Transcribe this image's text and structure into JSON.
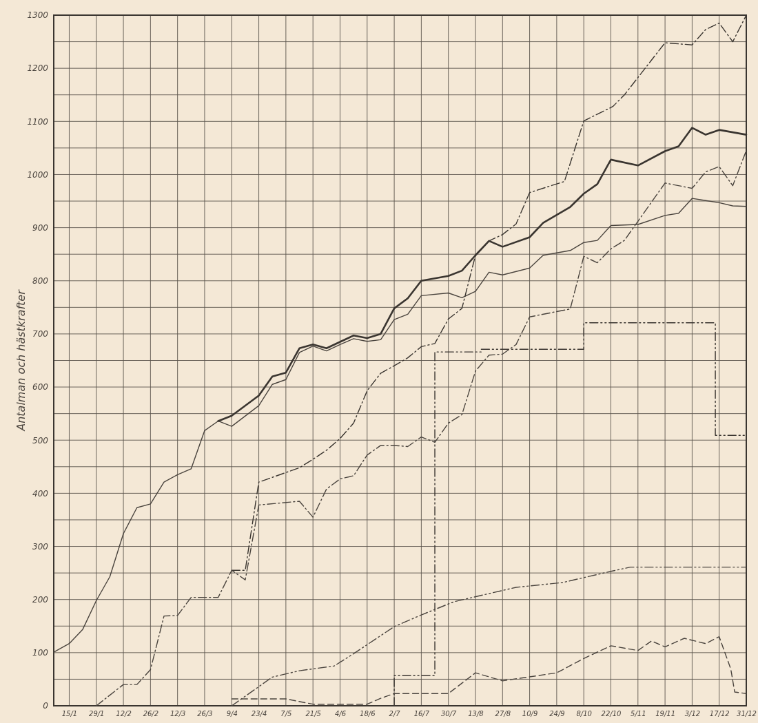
{
  "chart_data": {
    "type": "line",
    "ylabel": "Antalman och hästkrafter",
    "grid": true,
    "xlim": [
      "--01-07",
      "--12-31"
    ],
    "ylim": [
      0,
      1300
    ],
    "xticks": [
      {
        "value": "--01-15",
        "label": "15/1"
      },
      {
        "value": "--01-29",
        "label": "29/1"
      },
      {
        "value": "--02-12",
        "label": "12/2"
      },
      {
        "value": "--02-26",
        "label": "26/2"
      },
      {
        "value": "--03-12",
        "label": "12/3"
      },
      {
        "value": "--03-26",
        "label": "26/3"
      },
      {
        "value": "--04-09",
        "label": "9/4"
      },
      {
        "value": "--04-23",
        "label": "23/4"
      },
      {
        "value": "--05-07",
        "label": "7/5"
      },
      {
        "value": "--05-21",
        "label": "21/5"
      },
      {
        "value": "--06-04",
        "label": "4/6"
      },
      {
        "value": "--06-18",
        "label": "18/6"
      },
      {
        "value": "--07-02",
        "label": "2/7"
      },
      {
        "value": "--07-16",
        "label": "16/7"
      },
      {
        "value": "--07-30",
        "label": "30/7"
      },
      {
        "value": "--08-13",
        "label": "13/8"
      },
      {
        "value": "--08-27",
        "label": "27/8"
      },
      {
        "value": "--09-10",
        "label": "10/9"
      },
      {
        "value": "--09-24",
        "label": "24/9"
      },
      {
        "value": "--10-08",
        "label": "8/10"
      },
      {
        "value": "--10-22",
        "label": "22/10"
      },
      {
        "value": "--11-05",
        "label": "5/11"
      },
      {
        "value": "--11-19",
        "label": "19/11"
      },
      {
        "value": "--12-03",
        "label": "3/12"
      },
      {
        "value": "--12-17",
        "label": "17/12"
      },
      {
        "value": "--12-31",
        "label": "31/12"
      }
    ],
    "yticks": [
      0,
      {
        "value": 50,
        "label": null
      },
      100,
      {
        "value": 150,
        "label": null
      },
      200,
      {
        "value": 250,
        "label": null
      },
      300,
      {
        "value": 350,
        "label": null
      },
      400,
      {
        "value": 450,
        "label": null
      },
      500,
      {
        "value": 550,
        "label": null
      },
      600,
      {
        "value": 650,
        "label": null
      },
      700,
      {
        "value": 750,
        "label": null
      },
      800,
      {
        "value": 850,
        "label": null
      },
      900,
      {
        "value": 950,
        "label": null
      },
      1000,
      {
        "value": 1050,
        "label": null
      },
      1100,
      {
        "value": 1150,
        "label": null
      },
      1200,
      {
        "value": 1250,
        "label": null
      },
      1300
    ],
    "series": [
      {
        "color": "#4a443e",
        "line_style": "solid",
        "x": [
          "--01-07",
          "--01-15",
          "--01-22",
          "--01-29",
          "--02-05",
          "--02-12",
          "--02-19",
          "--02-26",
          "--03-05",
          "--03-12",
          "--03-19",
          "--03-26",
          "--04-02",
          "--04-09",
          "--04-23",
          "--04-30",
          "--05-07",
          "--05-14",
          "--05-21",
          "--05-28",
          "--06-04",
          "--06-11",
          "--06-18",
          "--06-25",
          "--07-02",
          "--07-09",
          "--07-16",
          "--07-30",
          "--08-06",
          "--08-13",
          "--08-20",
          "--08-27",
          "--09-10",
          "--09-17",
          "--10-01",
          "--10-08",
          "--10-15",
          "--10-22",
          "--11-05",
          "--11-19",
          "--11-26",
          "--12-03",
          "--12-10",
          "--12-17",
          "--12-24",
          "--12-31"
        ],
        "values": [
          101,
          117,
          144,
          198,
          243,
          324,
          373,
          380,
          421,
          435,
          446,
          518,
          536,
          526,
          565,
          605,
          614,
          665,
          677,
          668,
          680,
          691,
          686,
          689,
          727,
          737,
          772,
          777,
          768,
          780,
          816,
          811,
          824,
          848,
          857,
          872,
          876,
          904,
          906,
          923,
          927,
          955,
          951,
          947,
          941,
          940
        ]
      },
      {
        "color": "#3a3530",
        "line_style": "solid",
        "x": [
          "--04-02",
          "--04-09",
          "--04-23",
          "--04-30",
          "--05-07",
          "--05-14",
          "--05-21",
          "--05-28",
          "--06-04",
          "--06-11",
          "--06-18",
          "--06-25",
          "--07-02",
          "--07-09",
          "--07-16",
          "--07-30",
          "--08-06",
          "--08-13",
          "--08-20",
          "--08-27",
          "--09-10",
          "--09-17",
          "--10-01",
          "--10-08",
          "--10-15",
          "--10-22",
          "--11-05",
          "--11-19",
          "--11-26",
          "--12-03",
          "--12-10",
          "--12-17",
          "--12-31"
        ],
        "values": [
          536,
          546,
          584,
          620,
          627,
          673,
          680,
          673,
          685,
          697,
          692,
          700,
          748,
          767,
          800,
          809,
          819,
          848,
          875,
          864,
          882,
          909,
          939,
          964,
          982,
          1028,
          1017,
          1044,
          1053,
          1088,
          1075,
          1084,
          1075
        ]
      },
      {
        "color": "#3a3530",
        "line_style": "dashdot",
        "x": [
          "--04-09",
          "--04-16",
          "--04-23",
          "--05-07",
          "--05-14",
          "--05-21",
          "--05-28",
          "--06-04",
          "--06-11",
          "--06-18",
          "--06-25",
          "--07-02",
          "--07-09",
          "--07-16",
          "--07-23",
          "--07-30",
          "--08-06",
          "--08-13",
          "--08-20",
          "--08-27",
          "--09-03",
          "--09-10",
          "--09-28",
          "--10-08",
          "--10-23",
          "--10-29",
          "--11-19",
          "--12-03",
          "--12-10",
          "--12-17",
          "--12-24",
          "--12-31"
        ],
        "values": [
          255,
          255,
          421,
          439,
          448,
          464,
          481,
          503,
          532,
          593,
          626,
          640,
          655,
          676,
          682,
          728,
          748,
          848,
          875,
          887,
          907,
          966,
          987,
          1101,
          1128,
          1150,
          1248,
          1244,
          1273,
          1285,
          1250,
          1300
        ]
      },
      {
        "color": "#4a443e",
        "line_style": "dashdot",
        "x": [
          "--01-29",
          "--02-12",
          "--02-19",
          "--02-26",
          "--03-05",
          "--03-12",
          "--03-19",
          "--04-02",
          "--04-09",
          "--04-16",
          "--04-23",
          "--05-14",
          "--05-21",
          "--05-28",
          "--06-04",
          "--06-11",
          "--06-18",
          "--06-25",
          "--07-02",
          "--07-09",
          "--07-16",
          "--07-23",
          "--07-30",
          "--08-06",
          "--08-13",
          "--08-20",
          "--08-27",
          "--09-03",
          "--09-10",
          "--10-01",
          "--10-08",
          "--10-15",
          "--10-22",
          "--10-29",
          "--11-19",
          "--12-03",
          "--12-10",
          "--12-17",
          "--12-24",
          "--12-31"
        ],
        "values": [
          0,
          40,
          40,
          68,
          169,
          170,
          204,
          204,
          255,
          237,
          378,
          385,
          355,
          408,
          427,
          433,
          472,
          490,
          490,
          488,
          506,
          496,
          532,
          548,
          630,
          660,
          662,
          680,
          732,
          747,
          846,
          834,
          860,
          876,
          984,
          974,
          1005,
          1015,
          979,
          1045
        ]
      },
      {
        "type": "step",
        "color": "#3a3530",
        "line_style": "dashdotdot",
        "x": [
          "--07-02",
          "--07-02",
          "--07-23",
          "--08-16",
          "--10-08",
          "--12-15",
          "--12-31"
        ],
        "values": [
          0,
          57,
          666,
          671,
          721,
          509,
          509
        ]
      },
      {
        "color": "#4a443e",
        "line_style": "dashdotdot",
        "x": [
          "--04-09",
          "--04-30",
          "--05-14",
          "--06-01",
          "--06-11",
          "--06-25",
          "--07-02",
          "--07-16",
          "--08-02",
          "--09-03",
          "--09-27",
          "--10-22",
          "--11-01",
          "--12-31"
        ],
        "values": [
          0,
          54,
          66,
          75,
          98,
          132,
          149,
          171,
          196,
          223,
          232,
          253,
          261,
          261
        ]
      },
      {
        "color": "#4a443e",
        "line_style": "dashed",
        "x": [
          "--04-09",
          "--05-07",
          "--05-21",
          "--06-18",
          "--06-25",
          "--07-02",
          "--07-30",
          "--08-13",
          "--08-27",
          "--09-24",
          "--10-08",
          "--10-22",
          "--11-05",
          "--11-12",
          "--11-19",
          "--11-29",
          "--12-10",
          "--12-17",
          "--12-23",
          "--12-25",
          "--12-31"
        ],
        "values": [
          13,
          13,
          3,
          3,
          14,
          23,
          23,
          62,
          47,
          62,
          89,
          113,
          104,
          122,
          111,
          127,
          117,
          130,
          69,
          26,
          23
        ]
      }
    ]
  }
}
